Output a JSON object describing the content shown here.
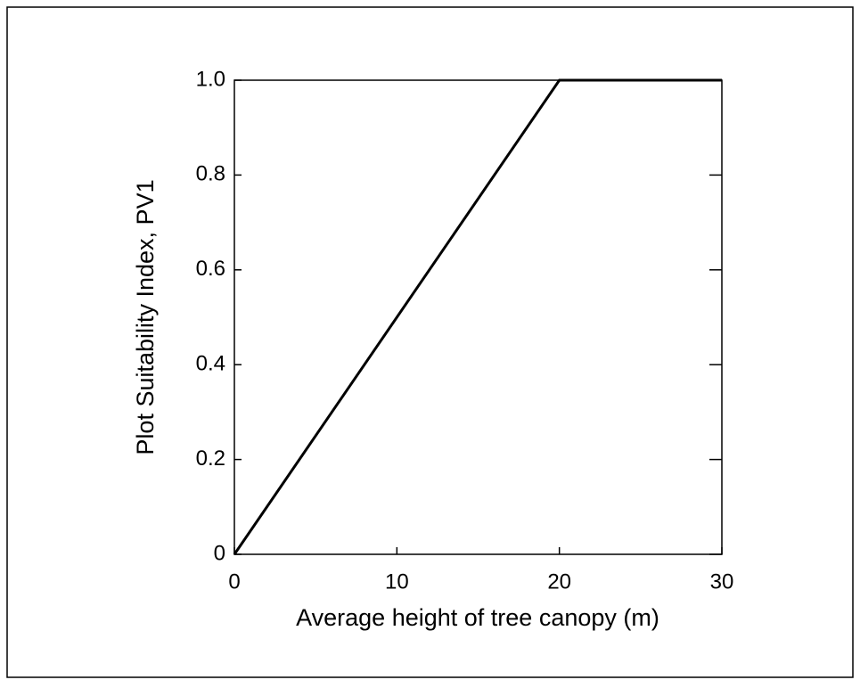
{
  "chart_data": {
    "type": "line",
    "xlabel": "Average height of tree canopy (m)",
    "ylabel": "Plot Suitability Index, PV1",
    "x": [
      0,
      20,
      30
    ],
    "series": [
      {
        "color": "#000000",
        "values": [
          0,
          1,
          1
        ]
      }
    ],
    "xlim": [
      0,
      30
    ],
    "xticks": [
      0,
      10,
      20,
      30
    ],
    "ylim": [
      0,
      1
    ],
    "yticks": [
      0,
      0.2,
      0.4,
      0.6,
      0.8,
      {
        "value": 1,
        "label": "1.0"
      }
    ],
    "grid": false
  }
}
